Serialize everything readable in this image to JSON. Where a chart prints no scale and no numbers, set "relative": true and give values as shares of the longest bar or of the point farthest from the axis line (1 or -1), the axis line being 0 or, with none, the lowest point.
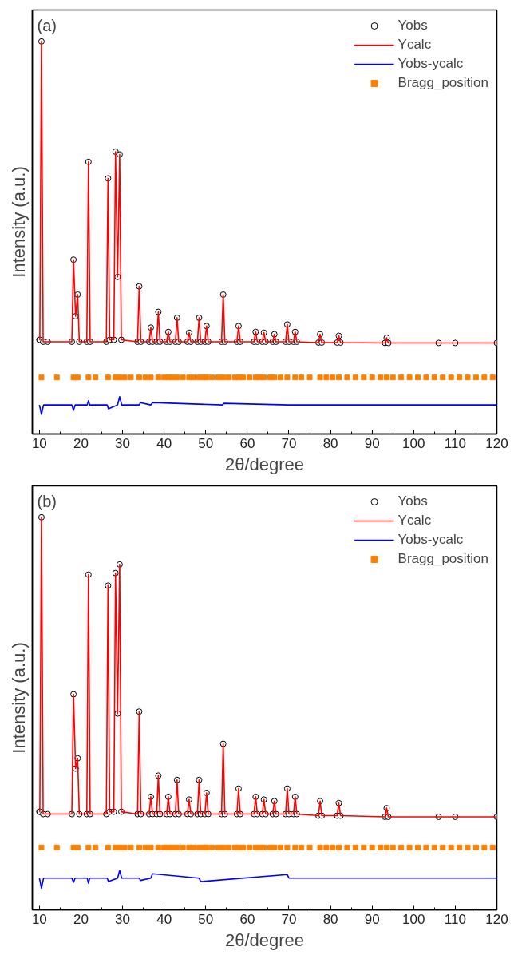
{
  "chart_data": [
    {
      "type": "line",
      "relative": true,
      "xlabel": "2θ/degree",
      "ylabel": "Intensity (a.u.)",
      "annotations": [
        "(a)"
      ],
      "xlim": [
        8.3,
        120
      ],
      "xticks": [
        10,
        20,
        30,
        40,
        50,
        60,
        70,
        80,
        90,
        100,
        110,
        120
      ],
      "tick_labels": "x",
      "grid": false,
      "legend": "top right",
      "x": [
        10,
        10.1,
        10.5,
        10.9,
        12,
        17.8,
        18.2,
        18.7,
        19.2,
        19.6,
        21.4,
        21.8,
        22.2,
        26.1,
        26.5,
        26.9,
        27.9,
        28.3,
        28.8,
        29.3,
        29.7,
        33.6,
        34.0,
        34.4,
        36.4,
        36.8,
        37.2,
        38.2,
        38.6,
        39.0,
        40.6,
        41.0,
        41.4,
        42.7,
        43.1,
        43.5,
        45.6,
        46.0,
        46.4,
        48.0,
        48.4,
        48.8,
        49.8,
        50.2,
        50.6,
        53.8,
        54.2,
        54.6,
        57.5,
        57.9,
        58.3,
        61.6,
        62.0,
        62.4,
        63.6,
        64.0,
        64.4,
        66.1,
        66.5,
        66.9,
        69.2,
        69.6,
        70.0,
        71.1,
        71.5,
        71.9,
        77.1,
        77.5,
        77.9,
        81.6,
        82.0,
        82.4,
        93.1,
        93.5,
        93.9,
        106,
        110,
        120
      ],
      "series": [
        {
          "name": "Yobs",
          "type": "scatter",
          "marker": "circle",
          "color": "#000000",
          "values": [
            0.24,
            0.24,
            1.0,
            0.235,
            0.235,
            0.235,
            0.444,
            0.3,
            0.355,
            0.235,
            0.235,
            0.693,
            0.235,
            0.235,
            0.651,
            0.24,
            0.24,
            0.719,
            0.4,
            0.712,
            0.24,
            0.235,
            0.376,
            0.235,
            0.235,
            0.271,
            0.235,
            0.235,
            0.311,
            0.235,
            0.235,
            0.26,
            0.235,
            0.235,
            0.296,
            0.235,
            0.235,
            0.258,
            0.235,
            0.235,
            0.296,
            0.235,
            0.235,
            0.275,
            0.235,
            0.235,
            0.355,
            0.235,
            0.235,
            0.275,
            0.235,
            0.235,
            0.26,
            0.235,
            0.235,
            0.258,
            0.235,
            0.235,
            0.254,
            0.235,
            0.235,
            0.279,
            0.235,
            0.235,
            0.26,
            0.235,
            0.233,
            0.254,
            0.233,
            0.233,
            0.25,
            0.233,
            0.232,
            0.245,
            0.232,
            0.232,
            0.232,
            0.232
          ]
        },
        {
          "name": "Ycalc",
          "color": "#ff0000",
          "values": [
            0.24,
            0.24,
            1.0,
            0.235,
            0.235,
            0.235,
            0.444,
            0.3,
            0.355,
            0.235,
            0.235,
            0.693,
            0.235,
            0.235,
            0.651,
            0.24,
            0.24,
            0.719,
            0.4,
            0.712,
            0.24,
            0.235,
            0.376,
            0.235,
            0.235,
            0.271,
            0.235,
            0.235,
            0.311,
            0.235,
            0.235,
            0.26,
            0.235,
            0.235,
            0.296,
            0.235,
            0.235,
            0.258,
            0.235,
            0.235,
            0.296,
            0.235,
            0.235,
            0.275,
            0.235,
            0.235,
            0.355,
            0.235,
            0.235,
            0.275,
            0.235,
            0.235,
            0.26,
            0.235,
            0.235,
            0.258,
            0.235,
            0.235,
            0.254,
            0.235,
            0.235,
            0.279,
            0.235,
            0.235,
            0.26,
            0.235,
            0.233,
            0.254,
            0.233,
            0.233,
            0.25,
            0.233,
            0.232,
            0.245,
            0.232,
            0.232,
            0.232,
            0.232
          ]
        },
        {
          "name": "Yobs-ycalc",
          "color": "#0000ff",
          "x": [
            10,
            10.5,
            11,
            17.8,
            18.2,
            18.6,
            21.5,
            21.8,
            22.1,
            26.3,
            26.6,
            28.8,
            29.3,
            29.8,
            34,
            34.3,
            36.8,
            37.2,
            54,
            54.4,
            70,
            120
          ],
          "values": [
            0.074,
            0.05,
            0.074,
            0.074,
            0.06,
            0.074,
            0.074,
            0.085,
            0.074,
            0.074,
            0.064,
            0.074,
            0.095,
            0.074,
            0.074,
            0.08,
            0.074,
            0.08,
            0.074,
            0.078,
            0.074,
            0.074
          ]
        },
        {
          "name": "Bragg_position",
          "type": "scatter",
          "marker": "square",
          "color": "#ff8000",
          "x": [
            10.5,
            14.2,
            18.2,
            19.2,
            21.8,
            23.5,
            26.5,
            28.3,
            29.3,
            30.5,
            32,
            34,
            35.5,
            36.8,
            38.6,
            40,
            41,
            42,
            43.1,
            44.5,
            46,
            47,
            48.4,
            49.5,
            50.2,
            51.5,
            53,
            54.2,
            55.5,
            57,
            57.9,
            59,
            60.5,
            62,
            63,
            64,
            65.5,
            66.5,
            68,
            69.6,
            71.5,
            73,
            75,
            77.5,
            79,
            80.5,
            82,
            84,
            86,
            88,
            90,
            92,
            93.5,
            95,
            97,
            99,
            101,
            103,
            105,
            107,
            109,
            111,
            113,
            115,
            117,
            119
          ],
          "values": [
            0.144,
            0.144,
            0.144,
            0.144,
            0.144,
            0.144,
            0.144,
            0.144,
            0.144,
            0.144,
            0.144,
            0.144,
            0.144,
            0.144,
            0.144,
            0.144,
            0.144,
            0.144,
            0.144,
            0.144,
            0.144,
            0.144,
            0.144,
            0.144,
            0.144,
            0.144,
            0.144,
            0.144,
            0.144,
            0.144,
            0.144,
            0.144,
            0.144,
            0.144,
            0.144,
            0.144,
            0.144,
            0.144,
            0.144,
            0.144,
            0.144,
            0.144,
            0.144,
            0.144,
            0.144,
            0.144,
            0.144,
            0.144,
            0.144,
            0.144,
            0.144,
            0.144,
            0.144,
            0.144,
            0.144,
            0.144,
            0.144,
            0.144,
            0.144,
            0.144,
            0.144,
            0.144,
            0.144,
            0.144,
            0.144,
            0.144
          ]
        }
      ]
    },
    {
      "type": "line",
      "relative": true,
      "xlabel": "2θ/degree",
      "ylabel": "Intensity (a.u.)",
      "annotations": [
        "(b)"
      ],
      "xlim": [
        8.3,
        120
      ],
      "xticks": [
        10,
        20,
        30,
        40,
        50,
        60,
        70,
        80,
        90,
        100,
        110,
        120
      ],
      "tick_labels": "x",
      "grid": false,
      "legend": "top right",
      "x": [
        10,
        10.1,
        10.5,
        10.9,
        12,
        17.8,
        18.2,
        18.7,
        19.2,
        19.6,
        21.4,
        21.8,
        22.2,
        26.1,
        26.5,
        26.9,
        27.9,
        28.3,
        28.8,
        29.3,
        29.7,
        33.6,
        34.0,
        34.4,
        36.4,
        36.8,
        37.2,
        38.2,
        38.6,
        39.0,
        40.6,
        41.0,
        41.4,
        42.7,
        43.1,
        43.5,
        45.6,
        46.0,
        46.4,
        48.0,
        48.4,
        48.8,
        49.8,
        50.2,
        50.6,
        53.8,
        54.2,
        54.6,
        57.5,
        57.9,
        58.3,
        61.6,
        62.0,
        62.4,
        63.6,
        64.0,
        64.4,
        66.1,
        66.5,
        66.9,
        69.2,
        69.6,
        70.0,
        71.1,
        71.5,
        71.9,
        77.1,
        77.5,
        77.9,
        81.6,
        82.0,
        82.4,
        93.1,
        93.5,
        93.9,
        106,
        110,
        120
      ],
      "series": [
        {
          "name": "Yobs",
          "type": "scatter",
          "marker": "circle",
          "color": "#000000",
          "values": [
            0.25,
            0.25,
            1.0,
            0.244,
            0.244,
            0.244,
            0.549,
            0.36,
            0.386,
            0.244,
            0.244,
            0.854,
            0.244,
            0.244,
            0.826,
            0.25,
            0.25,
            0.858,
            0.5,
            0.88,
            0.25,
            0.244,
            0.505,
            0.244,
            0.244,
            0.288,
            0.244,
            0.244,
            0.342,
            0.244,
            0.244,
            0.288,
            0.244,
            0.244,
            0.331,
            0.244,
            0.244,
            0.281,
            0.244,
            0.244,
            0.331,
            0.244,
            0.244,
            0.298,
            0.244,
            0.244,
            0.423,
            0.244,
            0.244,
            0.309,
            0.244,
            0.244,
            0.288,
            0.244,
            0.244,
            0.281,
            0.244,
            0.244,
            0.277,
            0.244,
            0.244,
            0.309,
            0.244,
            0.244,
            0.288,
            0.244,
            0.24,
            0.277,
            0.24,
            0.24,
            0.272,
            0.24,
            0.237,
            0.259,
            0.237,
            0.237,
            0.237,
            0.237
          ]
        },
        {
          "name": "Ycalc",
          "color": "#ff0000",
          "values": [
            0.25,
            0.25,
            1.0,
            0.244,
            0.244,
            0.244,
            0.549,
            0.36,
            0.386,
            0.244,
            0.244,
            0.854,
            0.244,
            0.244,
            0.826,
            0.25,
            0.25,
            0.858,
            0.5,
            0.88,
            0.25,
            0.244,
            0.505,
            0.244,
            0.244,
            0.288,
            0.244,
            0.244,
            0.342,
            0.244,
            0.244,
            0.288,
            0.244,
            0.244,
            0.331,
            0.244,
            0.244,
            0.281,
            0.244,
            0.244,
            0.331,
            0.244,
            0.244,
            0.298,
            0.244,
            0.244,
            0.423,
            0.244,
            0.244,
            0.309,
            0.244,
            0.244,
            0.288,
            0.244,
            0.244,
            0.281,
            0.244,
            0.244,
            0.277,
            0.244,
            0.244,
            0.309,
            0.244,
            0.244,
            0.288,
            0.244,
            0.24,
            0.277,
            0.24,
            0.24,
            0.272,
            0.24,
            0.237,
            0.259,
            0.237,
            0.237,
            0.237,
            0.237
          ]
        },
        {
          "name": "Yobs-ycalc",
          "color": "#0000ff",
          "x": [
            10,
            10.5,
            11,
            17.8,
            18.2,
            18.6,
            21.5,
            21.8,
            22.1,
            26.3,
            26.6,
            28.8,
            29.3,
            29.8,
            34,
            34.3,
            36.8,
            37.2,
            48.4,
            48.8,
            69.6,
            70,
            120
          ],
          "values": [
            0.081,
            0.055,
            0.081,
            0.081,
            0.07,
            0.081,
            0.081,
            0.068,
            0.081,
            0.081,
            0.072,
            0.081,
            0.1,
            0.081,
            0.081,
            0.075,
            0.081,
            0.092,
            0.081,
            0.072,
            0.09,
            0.081,
            0.081
          ]
        },
        {
          "name": "Bragg_position",
          "type": "scatter",
          "marker": "square",
          "color": "#ff8000",
          "x": [
            10.5,
            14.2,
            18.2,
            19.2,
            21.8,
            23.5,
            26.5,
            28.3,
            29.3,
            30.5,
            32,
            34,
            35.5,
            36.8,
            38.6,
            40,
            41,
            42,
            43.1,
            44.5,
            46,
            47,
            48.4,
            49.5,
            50.2,
            51.5,
            53,
            54.2,
            55.5,
            57,
            57.9,
            59,
            60.5,
            62,
            63,
            64,
            65.5,
            66.5,
            68,
            69.6,
            71.5,
            73,
            75,
            77.5,
            79,
            80.5,
            82,
            84,
            86,
            88,
            90,
            92,
            93.5,
            95,
            97,
            99,
            101,
            103,
            105,
            107,
            109,
            111,
            113,
            115,
            117,
            119
          ],
          "values": [
            0.159,
            0.159,
            0.159,
            0.159,
            0.159,
            0.159,
            0.159,
            0.159,
            0.159,
            0.159,
            0.159,
            0.159,
            0.159,
            0.159,
            0.159,
            0.159,
            0.159,
            0.159,
            0.159,
            0.159,
            0.159,
            0.159,
            0.159,
            0.159,
            0.159,
            0.159,
            0.159,
            0.159,
            0.159,
            0.159,
            0.159,
            0.159,
            0.159,
            0.159,
            0.159,
            0.159,
            0.159,
            0.159,
            0.159,
            0.159,
            0.159,
            0.159,
            0.159,
            0.159,
            0.159,
            0.159,
            0.159,
            0.159,
            0.159,
            0.159,
            0.159,
            0.159,
            0.159,
            0.159,
            0.159,
            0.159,
            0.159,
            0.159,
            0.159,
            0.159,
            0.159,
            0.159,
            0.159,
            0.159,
            0.159,
            0.159
          ]
        }
      ]
    }
  ]
}
